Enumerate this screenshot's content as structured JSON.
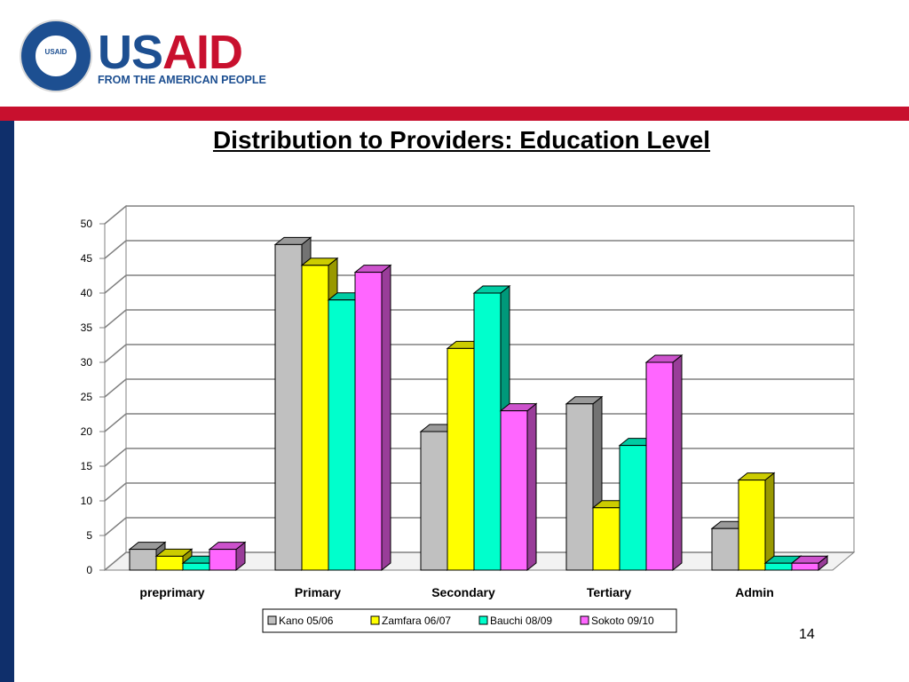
{
  "logo": {
    "seal_text": "USAID",
    "brand_us": "US",
    "brand_aid": "AID",
    "tagline": "FROM THE AMERICAN PEOPLE"
  },
  "slide": {
    "title": "Distribution to Providers: Education Level",
    "page_number": "14"
  },
  "colors": {
    "red_band": "#c8102e",
    "navy": "#1d4f91",
    "left_bar": "#0f2f6b"
  },
  "chart_data": {
    "type": "bar",
    "style": "3d-clustered-column",
    "categories": [
      "preprimary",
      "Primary",
      "Secondary",
      "Tertiary",
      "Admin"
    ],
    "series": [
      {
        "name": "Kano 05/06",
        "color": "#c0c0c0",
        "values": [
          3,
          47,
          20,
          24,
          6
        ]
      },
      {
        "name": "Zamfara 06/07",
        "color": "#ffff00",
        "values": [
          2,
          44,
          32,
          9,
          13
        ]
      },
      {
        "name": "Bauchi 08/09",
        "color": "#00ffcc",
        "values": [
          1,
          39,
          40,
          18,
          1
        ]
      },
      {
        "name": "Sokoto 09/10",
        "color": "#ff66ff",
        "values": [
          3,
          43,
          23,
          30,
          1
        ]
      }
    ],
    "ylim": [
      0,
      50
    ],
    "yticks": [
      0,
      5,
      10,
      15,
      20,
      25,
      30,
      35,
      40,
      45,
      50
    ],
    "grid": true,
    "legend_position": "bottom"
  }
}
